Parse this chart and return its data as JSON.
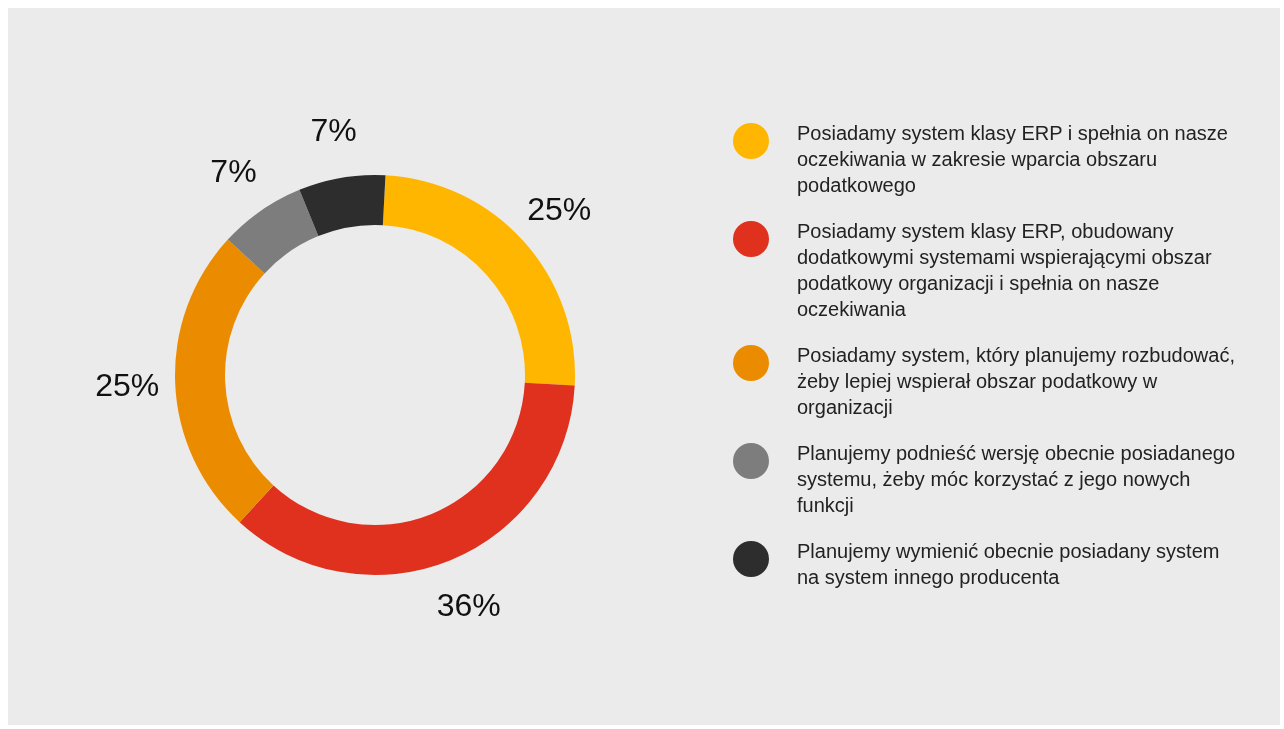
{
  "chart_data": {
    "type": "donut",
    "categories": [
      "Posiadamy system klasy ERP i spełnia on nasze oczekiwania w zakresie wparcia obszaru podatkowego",
      "Posiadamy system klasy ERP, obudowany dodatkowymi systemami wspierającymi obszar podatkowy organizacji i spełnia on nasze oczekiwania",
      "Posiadamy system, który planujemy rozbudować, żeby lepiej wspierał obszar podatkowy w organizacji",
      "Planujemy podnieść wersję obecnie posiadanego systemu, żeby móc korzystać z jego nowych funkcji",
      "Planujemy wymienić obecnie posiadany system na system innego producenta"
    ],
    "values": [
      25,
      36,
      25,
      7,
      7
    ],
    "value_labels": [
      "25%",
      "36%",
      "25%",
      "7%",
      "7%"
    ],
    "colors": [
      "#ffb600",
      "#e0301e",
      "#eb8c00",
      "#7d7d7d",
      "#2d2d2d"
    ],
    "legend": "right"
  }
}
